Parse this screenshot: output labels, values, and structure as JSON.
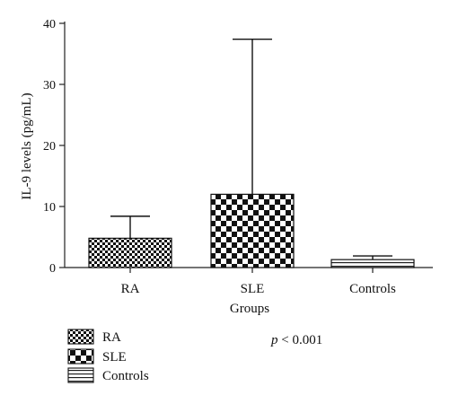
{
  "chart_data": {
    "type": "bar",
    "categories": [
      "RA",
      "SLE",
      "Controls"
    ],
    "values": [
      4.8,
      12.0,
      1.3
    ],
    "error_upper": [
      8.4,
      37.4,
      1.9
    ],
    "xlabel": "Groups",
    "ylabel": "IL-9 levels (pg/mL)",
    "ylim": [
      0,
      40
    ],
    "yticks": [
      0,
      10,
      20,
      30,
      40
    ],
    "legend": {
      "placement": "bottom-left",
      "entries": [
        {
          "label": "RA",
          "pattern": "small-checker"
        },
        {
          "label": "SLE",
          "pattern": "large-checker"
        },
        {
          "label": "Controls",
          "pattern": "horizontal-stripes"
        }
      ]
    },
    "annotation": {
      "p_symbol": "p",
      "p_rest": " < 0.001"
    },
    "grid": false
  },
  "colors": {
    "ink": "#111111",
    "background": "#ffffff"
  }
}
